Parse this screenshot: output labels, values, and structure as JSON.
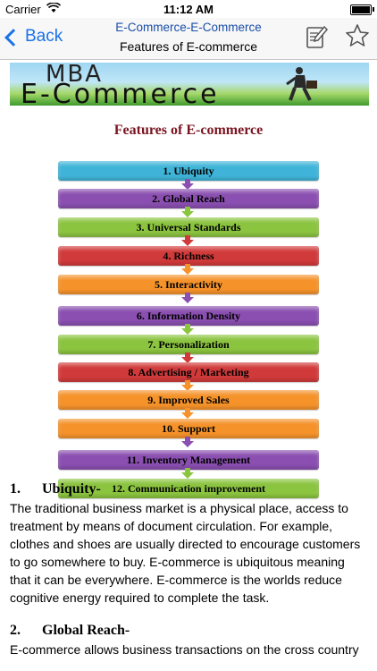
{
  "status_bar": {
    "carrier": "Carrier",
    "time": "11:12 AM"
  },
  "nav": {
    "back_label": "Back",
    "title": "E-Commerce-E-Commerce",
    "subtitle": "Features of E-commerce",
    "icons": [
      "edit-notes-icon",
      "star-icon"
    ]
  },
  "banner": {
    "line1": "MBA",
    "line2": "E-Commerce"
  },
  "heading": "Features of E-commerce",
  "steps": [
    {
      "label": "1. Ubiquity",
      "color": "#3fb4d8"
    },
    {
      "label": "2. Global Reach",
      "color": "#8a4fb0"
    },
    {
      "label": "3. Universal Standards",
      "color": "#8bc43f"
    },
    {
      "label": "4. Richness",
      "color": "#d13a3a"
    },
    {
      "label": "5. Interactivity",
      "color": "#f5922a"
    },
    {
      "label": "6. Information Density",
      "color": "#8a4fb0"
    },
    {
      "label": "7. Personalization",
      "color": "#8bc43f"
    },
    {
      "label": "8. Advertising / Marketing",
      "color": "#d13a3a"
    },
    {
      "label": "9. Improved Sales",
      "color": "#f5922a"
    },
    {
      "label": "10. Support",
      "color": "#f5922a"
    },
    {
      "label": "11. Inventory Management",
      "color": "#8a4fb0"
    },
    {
      "label": "12. Communication improvement",
      "color": "#8bc43f"
    }
  ],
  "sections": [
    {
      "number": "1.",
      "title": "Ubiquity-",
      "text": "The traditional business market is a physical place, access to treatment by means of document circulation. For example, clothes and shoes are usually directed to encourage customers to go somewhere to buy. E-commerce is ubiquitous meaning that it can be everywhere. E-commerce is the worlds reduce cognitive energy required to complete the task."
    },
    {
      "number": "2.",
      "title": "Global Reach-",
      "text": "E-commerce allows business transactions on the cross country"
    }
  ]
}
